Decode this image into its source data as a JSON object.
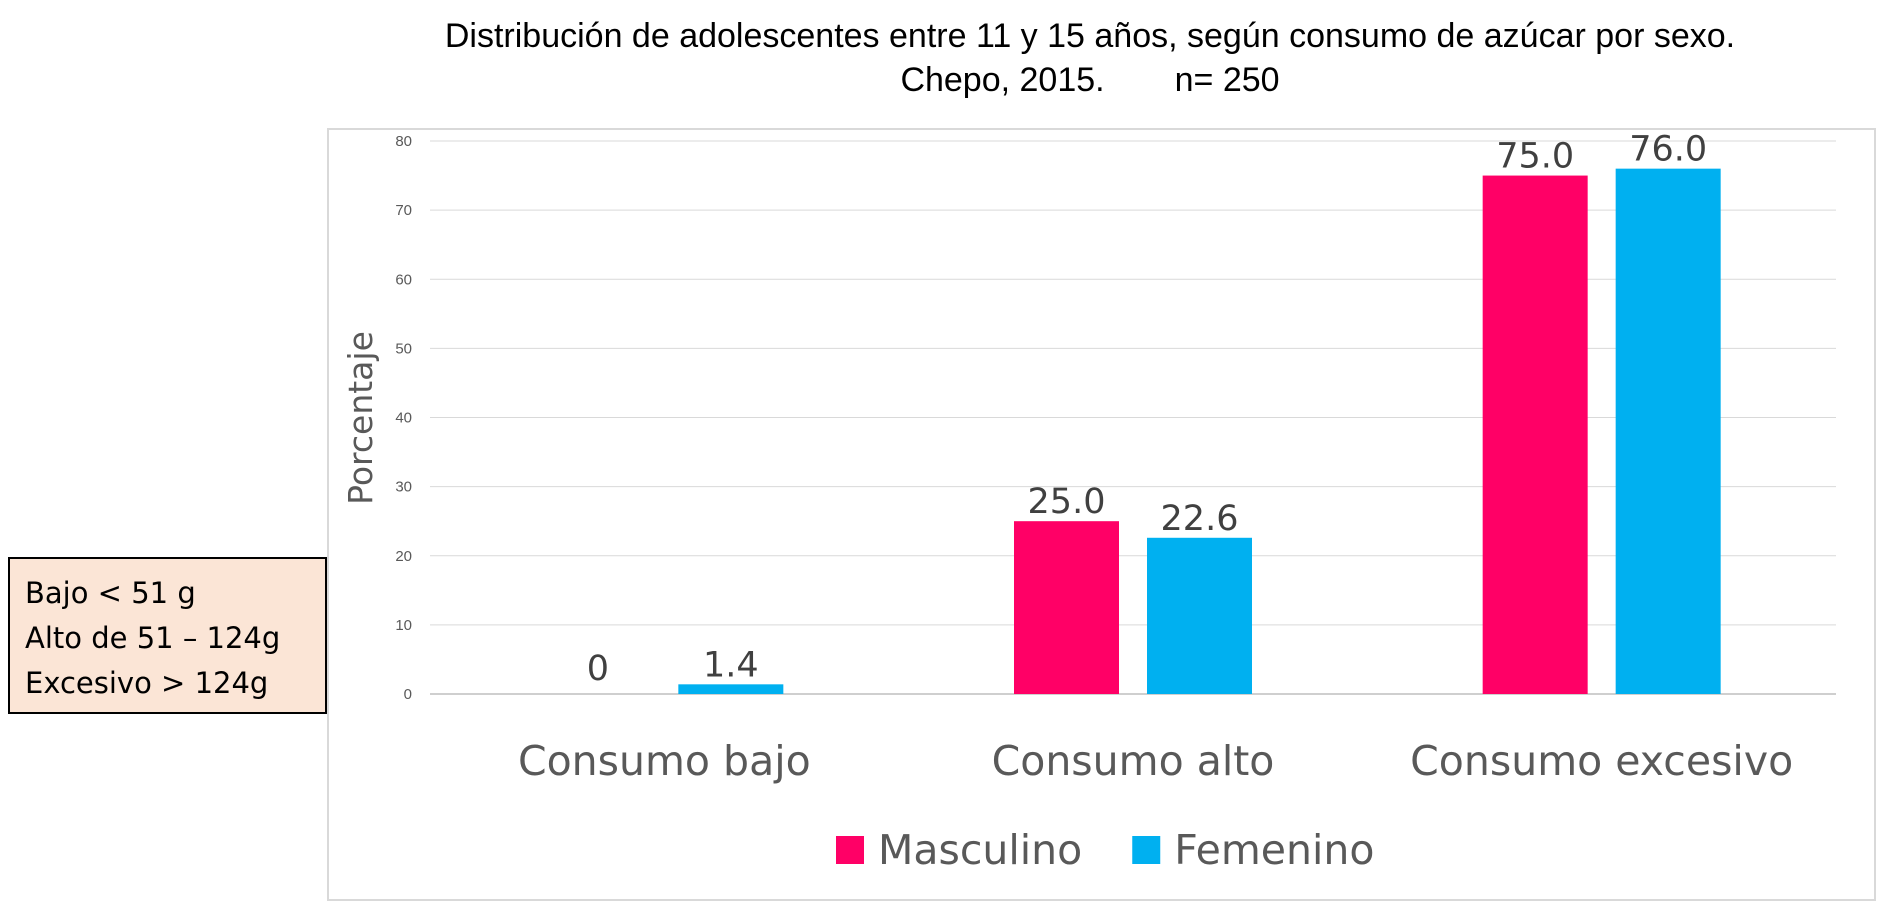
{
  "title_line1": "Distribución de adolescentes entre 11 y 15 años, según consumo de azúcar  por sexo.",
  "title_line2_place": "Chepo, 2015.",
  "title_line2_n": "n= 250",
  "note_box": {
    "lines": [
      "Bajo < 51 g",
      "Alto de 51 – 124g",
      "Excesivo > 124g"
    ],
    "background": "#fbe5d6"
  },
  "chart_data": {
    "type": "bar",
    "categories": [
      "Consumo bajo",
      "Consumo alto",
      "Consumo excesivo"
    ],
    "series": [
      {
        "name": "Masculino",
        "color": "#ff0066",
        "values": [
          0,
          25.0,
          75.0
        ],
        "labels": [
          "0",
          "25.0",
          "75.0"
        ]
      },
      {
        "name": "Femenino",
        "color": "#00b0f0",
        "values": [
          1.4,
          22.6,
          76.0
        ],
        "labels": [
          "1.4",
          "22.6",
          "76.0"
        ]
      }
    ],
    "ylabel": "Porcentaje",
    "ylim": [
      0,
      80
    ],
    "yticks": [
      0,
      10,
      20,
      30,
      40,
      50,
      60,
      70,
      80
    ],
    "grid": true,
    "legend": "bottom"
  }
}
